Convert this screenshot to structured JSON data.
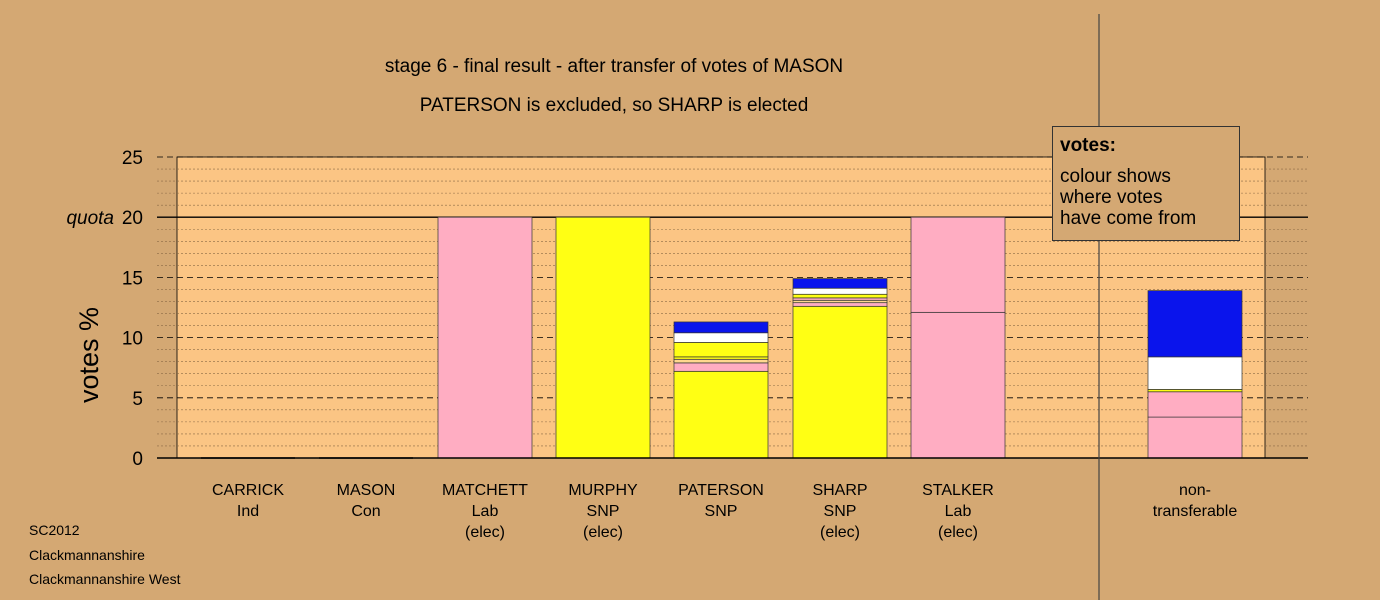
{
  "title": "stage 6 - final result - after transfer of votes of MASON",
  "subtitle": "PATERSON is excluded, so SHARP is elected",
  "legend": {
    "title": "votes:",
    "lines": [
      "colour shows",
      "where votes",
      "have come from"
    ]
  },
  "source": [
    "SC2012",
    "Clackmannanshire",
    "Clackmannanshire West"
  ],
  "colors": {
    "background": "#d4a873",
    "plot_background": "#fbc584",
    "Ind": "#d5d5d5",
    "Con": "#0a14ec",
    "Other": "#ffffff",
    "Lab": "#ffadc2",
    "SNP": "#ffff14",
    "mixed": "#ffd88f"
  },
  "chart_data": {
    "type": "bar",
    "stacked": true,
    "ylabel": "votes %",
    "ylim": [
      0,
      25
    ],
    "yticks": [
      0,
      5,
      10,
      15,
      20,
      25
    ],
    "quota": {
      "label": "quota",
      "value": 20
    },
    "grid": true,
    "legend_position": "top-right",
    "candidates": [
      {
        "name": "CARRICK",
        "lines": [
          "CARRICK",
          "Ind"
        ],
        "segments": []
      },
      {
        "name": "MASON",
        "lines": [
          "MASON",
          "Con"
        ],
        "segments": []
      },
      {
        "name": "MATCHETT",
        "lines": [
          "MATCHETT",
          "Lab",
          "(elec)"
        ],
        "segments": [
          {
            "source": "Lab",
            "value": 20.0
          }
        ]
      },
      {
        "name": "MURPHY",
        "lines": [
          "MURPHY",
          "SNP",
          "(elec)"
        ],
        "segments": [
          {
            "source": "SNP",
            "value": 20.0
          }
        ]
      },
      {
        "name": "PATERSON",
        "lines": [
          "PATERSON",
          "SNP"
        ],
        "segments": [
          {
            "source": "SNP",
            "value": 7.2
          },
          {
            "source": "Lab",
            "value": 0.7
          },
          {
            "source": "mixed",
            "value": 0.3
          },
          {
            "source": "SNP",
            "value": 0.2
          },
          {
            "source": "SNP",
            "value": 1.2
          },
          {
            "source": "Other",
            "value": 0.8
          },
          {
            "source": "Con",
            "value": 0.9
          }
        ]
      },
      {
        "name": "SHARP",
        "lines": [
          "SHARP",
          "SNP",
          "(elec)"
        ],
        "segments": [
          {
            "source": "SNP",
            "value": 12.6
          },
          {
            "source": "Lab",
            "value": 0.3
          },
          {
            "source": "mixed",
            "value": 0.2
          },
          {
            "source": "Lab",
            "value": 0.2
          },
          {
            "source": "SNP",
            "value": 0.3
          },
          {
            "source": "Other",
            "value": 0.5
          },
          {
            "source": "Con",
            "value": 0.8
          }
        ]
      },
      {
        "name": "STALKER",
        "lines": [
          "STALKER",
          "Lab",
          "(elec)"
        ],
        "segments": [
          {
            "source": "Lab",
            "value": 12.1
          },
          {
            "source": "Lab",
            "value": 7.9
          }
        ]
      },
      {
        "name": "non-transferable",
        "lines": [
          "non-",
          "transferable"
        ],
        "segments": [
          {
            "source": "Lab",
            "value": 3.4
          },
          {
            "source": "Lab",
            "value": 2.1
          },
          {
            "source": "SNP",
            "value": 0.2
          },
          {
            "source": "Other",
            "value": 2.7
          },
          {
            "source": "Con",
            "value": 5.5
          }
        ]
      }
    ]
  }
}
